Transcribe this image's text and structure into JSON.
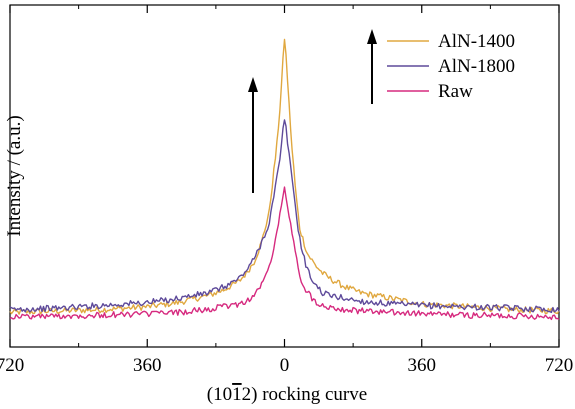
{
  "chart_data": {
    "type": "line",
    "title": "",
    "xlabel_prefix": "(10",
    "xlabel_overbar": "1",
    "xlabel_suffix": "2) rocking curve",
    "ylabel": "Intensity / (a.u.)",
    "xlim": [
      -720,
      720
    ],
    "ylim": [
      0,
      1
    ],
    "x_ticks": [
      -720,
      -360,
      0,
      360,
      720
    ],
    "x_tick_labels": [
      "720",
      "360",
      "0",
      "360",
      "720"
    ],
    "y_ticks_shown": false,
    "legend_position": "top-right",
    "series": [
      {
        "name": "AlN-1400",
        "color": "#e0a840",
        "x": [
          -720,
          -600,
          -480,
          -360,
          -280,
          -200,
          -160,
          -120,
          -100,
          -80,
          -60,
          -40,
          -30,
          -20,
          -10,
          -5,
          0,
          5,
          10,
          20,
          30,
          40,
          60,
          80,
          100,
          120,
          160,
          200,
          280,
          360,
          480,
          600,
          720
        ],
        "y": [
          0.02,
          0.025,
          0.03,
          0.04,
          0.055,
          0.08,
          0.1,
          0.13,
          0.16,
          0.2,
          0.27,
          0.38,
          0.5,
          0.62,
          0.78,
          0.9,
          1.0,
          0.92,
          0.8,
          0.6,
          0.44,
          0.32,
          0.23,
          0.19,
          0.16,
          0.14,
          0.11,
          0.09,
          0.07,
          0.05,
          0.04,
          0.03,
          0.025
        ]
      },
      {
        "name": "AlN-1800",
        "color": "#5e4a9a",
        "x": [
          -720,
          -600,
          -480,
          -360,
          -280,
          -200,
          -160,
          -120,
          -100,
          -80,
          -60,
          -40,
          -30,
          -20,
          -10,
          -5,
          0,
          5,
          10,
          20,
          30,
          40,
          60,
          80,
          100,
          120,
          160,
          200,
          280,
          360,
          480,
          600,
          720
        ],
        "y": [
          0.03,
          0.035,
          0.045,
          0.055,
          0.07,
          0.09,
          0.11,
          0.14,
          0.17,
          0.21,
          0.27,
          0.34,
          0.42,
          0.5,
          0.58,
          0.66,
          0.71,
          0.67,
          0.6,
          0.5,
          0.38,
          0.28,
          0.17,
          0.12,
          0.09,
          0.08,
          0.07,
          0.06,
          0.05,
          0.045,
          0.04,
          0.035,
          0.03
        ]
      },
      {
        "name": "Raw",
        "color": "#d62a7f",
        "x": [
          -720,
          -600,
          -480,
          -360,
          -280,
          -200,
          -160,
          -120,
          -100,
          -80,
          -60,
          -40,
          -30,
          -20,
          -10,
          -5,
          0,
          5,
          10,
          20,
          30,
          40,
          60,
          80,
          100,
          120,
          160,
          200,
          280,
          360,
          480,
          600,
          720
        ],
        "y": [
          0.005,
          0.007,
          0.01,
          0.015,
          0.02,
          0.03,
          0.04,
          0.05,
          0.06,
          0.08,
          0.12,
          0.18,
          0.24,
          0.31,
          0.38,
          0.43,
          0.46,
          0.43,
          0.38,
          0.3,
          0.22,
          0.15,
          0.09,
          0.06,
          0.045,
          0.04,
          0.03,
          0.025,
          0.02,
          0.015,
          0.01,
          0.008,
          0.005
        ]
      }
    ]
  }
}
